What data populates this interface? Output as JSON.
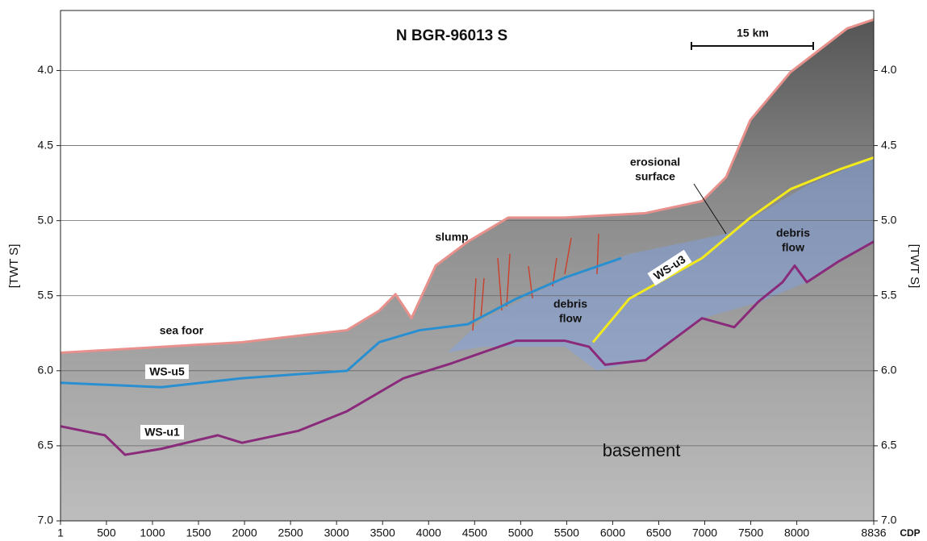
{
  "chart_data": {
    "type": "line",
    "title": "N BGR-96013 S",
    "y_label": "[TWT S]",
    "x_label": "CDP",
    "y_inverted": true,
    "grid": true,
    "xlim": [
      1,
      8836
    ],
    "xticks": [
      1,
      500,
      1000,
      1500,
      2000,
      2500,
      3000,
      3500,
      4000,
      4500,
      5000,
      5500,
      6000,
      6500,
      7000,
      7500,
      8000,
      8836
    ],
    "ylim": [
      3.6,
      7.0
    ],
    "yticks": [
      {
        "value": 4,
        "label": "4.0"
      },
      {
        "value": 4.5,
        "label": "4.5"
      },
      {
        "value": 5,
        "label": "5.0"
      },
      {
        "value": 5.5,
        "label": "5.5"
      },
      {
        "value": 6,
        "label": "6.0"
      },
      {
        "value": 6.5,
        "label": "6.5"
      },
      {
        "value": 7,
        "label": "7.0"
      }
    ],
    "scale_bar": "15 km",
    "annotations": [
      "slump",
      "erosional",
      "surface",
      "debris",
      "flow",
      "debris",
      "flow",
      "basement"
    ],
    "series": [
      {
        "name": "sea foor",
        "color": "#e8908c",
        "x": [
          1,
          1973,
          3113,
          3463,
          3640,
          3814,
          4077,
          4427,
          4865,
          5479,
          6356,
          6970,
          7232,
          7495,
          7933,
          8547,
          8836
        ],
        "values": [
          5.88,
          5.81,
          5.73,
          5.6,
          5.49,
          5.65,
          5.3,
          5.14,
          4.98,
          4.98,
          4.95,
          4.87,
          4.71,
          4.33,
          4.01,
          3.72,
          3.66
        ]
      },
      {
        "name": "WS-u5",
        "color": "#2a8fd0",
        "x": [
          1,
          1097,
          1973,
          3113,
          3463,
          3902,
          4427,
          4953,
          5479,
          6093
        ],
        "values": [
          6.08,
          6.11,
          6.05,
          6.0,
          5.81,
          5.73,
          5.69,
          5.52,
          5.38,
          5.25
        ]
      },
      {
        "name": "WS-u1",
        "color": "#8a2a7a",
        "x": [
          1,
          483,
          702,
          1097,
          1710,
          1973,
          2587,
          3113,
          3727,
          4252,
          4953,
          5479,
          5742,
          5917,
          6356,
          6970,
          7320,
          7583,
          7845,
          7977,
          8109,
          8459,
          8836
        ],
        "values": [
          6.37,
          6.43,
          6.56,
          6.52,
          6.43,
          6.48,
          6.4,
          6.27,
          6.05,
          5.95,
          5.8,
          5.8,
          5.84,
          5.96,
          5.93,
          5.65,
          5.71,
          5.54,
          5.41,
          5.3,
          5.41,
          5.27,
          5.14
        ]
      },
      {
        "name": "WS-u3",
        "color": "#f2ea1c",
        "x": [
          5786,
          6181,
          6970,
          7495,
          7933,
          8459,
          8836
        ],
        "values": [
          5.81,
          5.52,
          5.25,
          4.98,
          4.79,
          4.66,
          4.58
        ]
      }
    ]
  }
}
